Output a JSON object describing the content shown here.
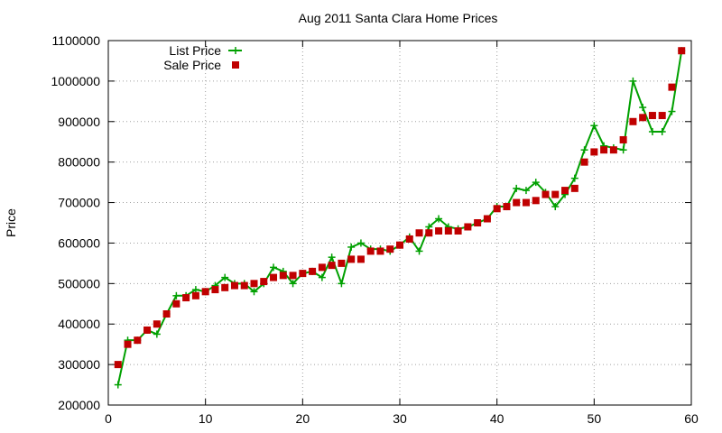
{
  "chart_data": {
    "type": "line",
    "title": "Aug 2011 Santa Clara Home Prices",
    "xlabel": "",
    "ylabel": "Price",
    "xlim": [
      0,
      60
    ],
    "ylim": [
      200000,
      1100000
    ],
    "xticks": [
      0,
      10,
      20,
      30,
      40,
      50,
      60
    ],
    "yticks": [
      200000,
      300000,
      400000,
      500000,
      600000,
      700000,
      800000,
      900000,
      1000000,
      1100000
    ],
    "grid": true,
    "legend_position": "top-left",
    "x": [
      1,
      2,
      3,
      4,
      5,
      6,
      7,
      8,
      9,
      10,
      11,
      12,
      13,
      14,
      15,
      16,
      17,
      18,
      19,
      20,
      21,
      22,
      23,
      24,
      25,
      26,
      27,
      28,
      29,
      30,
      31,
      32,
      33,
      34,
      35,
      36,
      37,
      38,
      39,
      40,
      41,
      42,
      43,
      44,
      45,
      46,
      47,
      48,
      49,
      50,
      51,
      52,
      53,
      54,
      55,
      56,
      57,
      58,
      59
    ],
    "series": [
      {
        "name": "List Price",
        "style": "line-plus",
        "color": "#00a000",
        "values": [
          250000,
          360000,
          360000,
          385000,
          375000,
          425000,
          470000,
          470000,
          485000,
          480000,
          495000,
          515000,
          500000,
          500000,
          480000,
          500000,
          540000,
          530000,
          500000,
          525000,
          530000,
          515000,
          565000,
          500000,
          590000,
          600000,
          585000,
          585000,
          580000,
          595000,
          615000,
          580000,
          640000,
          660000,
          640000,
          635000,
          640000,
          650000,
          660000,
          690000,
          690000,
          735000,
          730000,
          750000,
          725000,
          690000,
          720000,
          760000,
          830000,
          890000,
          840000,
          835000,
          830000,
          1000000,
          935000,
          875000,
          875000,
          925000,
          1075000
        ]
      },
      {
        "name": "Sale Price",
        "style": "square",
        "color": "#c00000",
        "values": [
          300000,
          350000,
          360000,
          385000,
          400000,
          425000,
          450000,
          465000,
          470000,
          480000,
          485000,
          490000,
          495000,
          495000,
          500000,
          505000,
          515000,
          520000,
          520000,
          525000,
          530000,
          540000,
          545000,
          550000,
          560000,
          560000,
          580000,
          580000,
          585000,
          595000,
          610000,
          625000,
          625000,
          630000,
          630000,
          630000,
          640000,
          650000,
          660000,
          685000,
          690000,
          700000,
          700000,
          705000,
          720000,
          720000,
          730000,
          735000,
          800000,
          825000,
          830000,
          830000,
          855000,
          900000,
          910000,
          915000,
          915000,
          985000,
          1075000
        ]
      }
    ]
  }
}
